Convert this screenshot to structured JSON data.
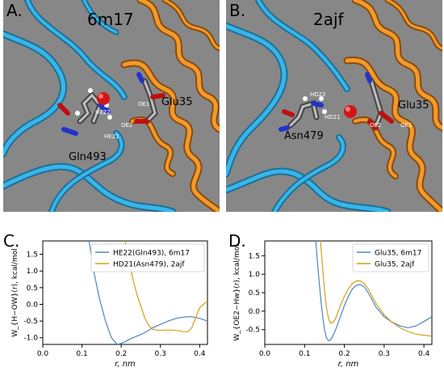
{
  "panels": {
    "A": {
      "label": "A.",
      "title": "6m17",
      "labels": {
        "he22": "HE22",
        "oe1": "OE1",
        "oe2": "OE2",
        "he21": "HE21",
        "glu35": "Glu35",
        "gln493": "Gln493"
      }
    },
    "B": {
      "label": "B.",
      "title": "2ajf",
      "labels": {
        "hd22": "HD22",
        "hd21": "HD21",
        "oe2": "OE2",
        "oe1": "OE1",
        "glu35": "Glu35",
        "asn479": "Asn479"
      }
    },
    "C": {
      "label": "C."
    },
    "D": {
      "label": "D."
    }
  },
  "colors": {
    "background_render": "#878787",
    "ribbon_blue": "#2a9fd6",
    "ribbon_orange": "#e08a1e",
    "series_blue": "#4c86c0",
    "series_orange": "#d4a017"
  },
  "chart_data": [
    {
      "panel": "C",
      "type": "line",
      "xlabel": "r, nm",
      "ylabel": "W_{H−OW}(r), kcal/mol",
      "xlim": [
        0.0,
        0.42
      ],
      "ylim": [
        -1.2,
        1.9
      ],
      "xticks": [
        "0.0",
        "0.1",
        "0.2",
        "0.3",
        "0.4"
      ],
      "yticks": [
        "1.5",
        "1.0",
        "0.5",
        "0.0",
        "-0.5",
        "-1.0"
      ],
      "legend_position": "top-right",
      "series": [
        {
          "name": "HE22(Gln493), 6m17",
          "color": "#4c86c0",
          "x": [
            0.118,
            0.13,
            0.145,
            0.16,
            0.175,
            0.19,
            0.205,
            0.22,
            0.24,
            0.26,
            0.28,
            0.3,
            0.32,
            0.34,
            0.36,
            0.38,
            0.4,
            0.42
          ],
          "y": [
            1.9,
            1.0,
            0.15,
            -0.5,
            -1.0,
            -1.2,
            -1.15,
            -1.05,
            -0.95,
            -0.85,
            -0.7,
            -0.6,
            -0.5,
            -0.42,
            -0.38,
            -0.37,
            -0.42,
            -0.5
          ]
        },
        {
          "name": "HD21(Asn479), 2ajf",
          "color": "#d4a017",
          "x": [
            0.21,
            0.22,
            0.23,
            0.24,
            0.25,
            0.26,
            0.27,
            0.28,
            0.3,
            0.32,
            0.34,
            0.36,
            0.37,
            0.38,
            0.39,
            0.4,
            0.41,
            0.42
          ],
          "y": [
            1.9,
            1.3,
            0.75,
            0.3,
            -0.05,
            -0.4,
            -0.62,
            -0.75,
            -0.78,
            -0.77,
            -0.78,
            -0.82,
            -0.82,
            -0.7,
            -0.4,
            -0.1,
            0.0,
            0.1
          ]
        }
      ]
    },
    {
      "panel": "D",
      "type": "line",
      "xlabel": "r, nm",
      "ylabel": "W_{OE2−Hw}(r), kcal/mol",
      "xlim": [
        0.0,
        0.42
      ],
      "ylim": [
        -0.9,
        1.9
      ],
      "xticks": [
        "0.0",
        "0.1",
        "0.2",
        "0.3",
        "0.4"
      ],
      "yticks": [
        "1.5",
        "1.0",
        "0.5",
        "0.0",
        "-0.5"
      ],
      "legend_position": "top-right",
      "series": [
        {
          "name": "Glu35, 6m17",
          "color": "#4c86c0",
          "x": [
            0.128,
            0.135,
            0.14,
            0.145,
            0.15,
            0.155,
            0.16,
            0.165,
            0.17,
            0.18,
            0.19,
            0.2,
            0.21,
            0.22,
            0.23,
            0.24,
            0.25,
            0.26,
            0.27,
            0.28,
            0.3,
            0.32,
            0.34,
            0.36,
            0.38,
            0.4,
            0.42
          ],
          "y": [
            1.9,
            1.0,
            0.4,
            -0.1,
            -0.5,
            -0.72,
            -0.8,
            -0.78,
            -0.7,
            -0.45,
            -0.15,
            0.15,
            0.4,
            0.6,
            0.7,
            0.72,
            0.66,
            0.5,
            0.3,
            0.1,
            -0.15,
            -0.3,
            -0.4,
            -0.45,
            -0.4,
            -0.28,
            -0.15
          ]
        },
        {
          "name": "Glu35, 2ajf",
          "color": "#d4a017",
          "x": [
            0.14,
            0.145,
            0.15,
            0.155,
            0.16,
            0.165,
            0.17,
            0.175,
            0.18,
            0.19,
            0.2,
            0.21,
            0.22,
            0.23,
            0.24,
            0.25,
            0.26,
            0.27,
            0.28,
            0.3,
            0.32,
            0.34,
            0.36,
            0.38,
            0.4,
            0.42
          ],
          "y": [
            1.9,
            1.2,
            0.6,
            0.1,
            -0.2,
            -0.32,
            -0.32,
            -0.25,
            -0.15,
            0.15,
            0.4,
            0.6,
            0.75,
            0.82,
            0.82,
            0.75,
            0.6,
            0.4,
            0.2,
            -0.1,
            -0.3,
            -0.45,
            -0.55,
            -0.62,
            -0.65,
            -0.68
          ]
        }
      ]
    }
  ]
}
